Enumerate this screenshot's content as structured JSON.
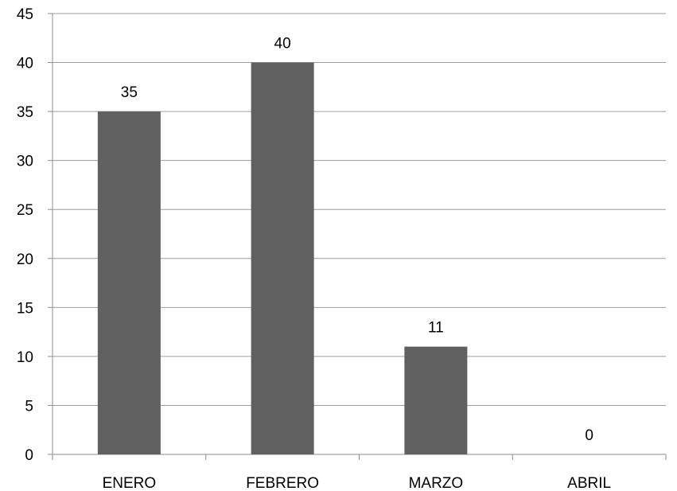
{
  "chart_data": {
    "type": "bar",
    "title": "",
    "xlabel": "",
    "ylabel": "",
    "categories": [
      "ENERO",
      "FEBRERO",
      "MARZO",
      "ABRIL"
    ],
    "values": [
      35,
      40,
      11,
      0
    ],
    "data_labels": [
      "35",
      "40",
      "11",
      "0"
    ],
    "ylim": [
      0,
      45
    ],
    "y_ticks": [
      0,
      5,
      10,
      15,
      20,
      25,
      30,
      35,
      40,
      45
    ],
    "grid": true,
    "legend": "none",
    "bar_color": "#606060"
  }
}
